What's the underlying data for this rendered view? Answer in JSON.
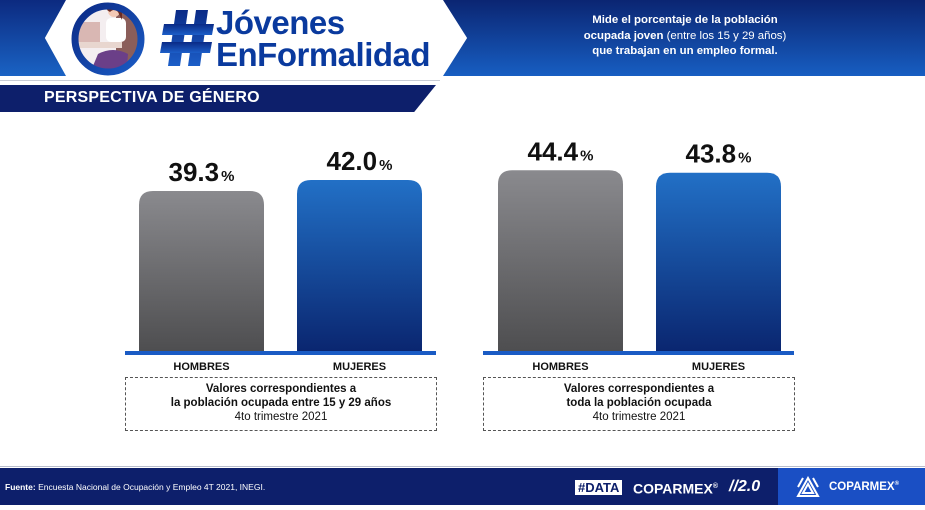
{
  "header": {
    "title_line1": "Jóvenes",
    "title_line2": "EnFormalidad",
    "hash_symbol": "#",
    "description_bold1": "Mide el porcentaje de la población",
    "description_bold2": "ocupada joven",
    "description_light": " (entre los 15 y 29 años)",
    "description_bold3": "que trabajan en un empleo formal.",
    "avatar_icon": "woman-at-desk-illustration"
  },
  "section": {
    "title": "PERSPECTIVA DE GÉNERO"
  },
  "colors": {
    "hombres_top": "#8a8a8e",
    "hombres_bottom": "#4e4e50",
    "mujeres_top": "#2270c6",
    "mujeres_bottom": "#0a2670",
    "baseline": "#1a5bc4",
    "navy": "#0d1f6b",
    "brand_blue": "#1a4fc4"
  },
  "chart_data": [
    {
      "type": "bar",
      "title": "Valores correspondientes a la población ocupada entre 15 y 29 años",
      "categories": [
        "HOMBRES",
        "MUJERES"
      ],
      "values": [
        39.3,
        42.0
      ],
      "value_labels": [
        "39.3",
        "42.0"
      ],
      "unit": "%",
      "xlabel": "",
      "ylabel": "",
      "grid": false,
      "note_line1": "Valores correspondientes a",
      "note_line2": "la población ocupada entre 15 y 29 años",
      "note_line3": "4to trimestre 2021"
    },
    {
      "type": "bar",
      "title": "Valores correspondientes a toda la población ocupada",
      "categories": [
        "HOMBRES",
        "MUJERES"
      ],
      "values": [
        44.4,
        43.8
      ],
      "value_labels": [
        "44.4",
        "43.8"
      ],
      "unit": "%",
      "xlabel": "",
      "ylabel": "",
      "grid": false,
      "note_line1": "Valores correspondientes a",
      "note_line2": "toda la población ocupada",
      "note_line3": "4to trimestre 2021"
    }
  ],
  "footer": {
    "source_label": "Fuente:",
    "source_text": " Encuesta Nacional de Ocupación y Empleo 4T 2021, INEGI.",
    "data_tag": "#DATA",
    "data_brand": "COPARMEX",
    "data_brand_mark": "®",
    "data_version": "//2.0",
    "org_name": "COPARMEX",
    "org_mark": "®"
  }
}
